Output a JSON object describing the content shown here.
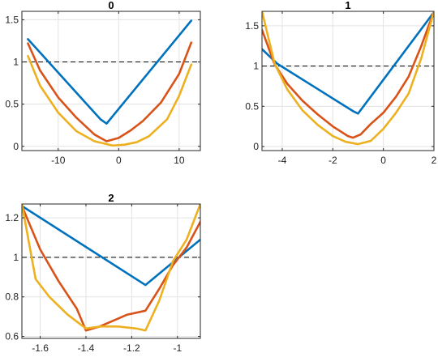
{
  "colors": {
    "s1": "#0072BD",
    "s2": "#D95319",
    "s3": "#EDB120",
    "grid": "#e3e3e3",
    "axis": "#262626"
  },
  "chart_data": [
    {
      "type": "line",
      "title": "0",
      "xlim": [
        -16,
        13.5
      ],
      "ylim": [
        -0.05,
        1.6
      ],
      "xticks": [
        -10,
        0,
        10
      ],
      "xtick_labels": [
        "-10",
        "0",
        "10"
      ],
      "yticks": [
        0,
        0.5,
        1,
        1.5
      ],
      "ytick_labels": [
        "0",
        "0.5",
        "1",
        "1.5"
      ],
      "grid": true,
      "reference_line": {
        "y": 1,
        "style": "dashed"
      },
      "series": [
        {
          "color": "#0072BD",
          "x": [
            -15,
            -3,
            -2,
            12
          ],
          "y": [
            1.27,
            0.32,
            0.27,
            1.49
          ]
        },
        {
          "color": "#D95319",
          "x": [
            -15,
            -13,
            -10,
            -7,
            -4,
            -2,
            0,
            2,
            4,
            7,
            10,
            12
          ],
          "y": [
            1.22,
            0.9,
            0.58,
            0.34,
            0.14,
            0.06,
            0.1,
            0.19,
            0.3,
            0.52,
            0.86,
            1.23
          ]
        },
        {
          "color": "#EDB120",
          "x": [
            -15,
            -13,
            -10,
            -7,
            -4,
            -1,
            1,
            3,
            5,
            8,
            10,
            12
          ],
          "y": [
            1.07,
            0.72,
            0.4,
            0.18,
            0.06,
            0.01,
            0.02,
            0.05,
            0.12,
            0.32,
            0.6,
            0.97
          ]
        }
      ]
    },
    {
      "type": "line",
      "title": "1",
      "xlim": [
        -4.8,
        2.0
      ],
      "ylim": [
        -0.05,
        1.68
      ],
      "xticks": [
        -4,
        -2,
        0,
        2
      ],
      "xtick_labels": [
        "-4",
        "-2",
        "0",
        "2"
      ],
      "yticks": [
        0,
        0.5,
        1,
        1.5
      ],
      "ytick_labels": [
        "0",
        "0.5",
        "1",
        "1.5"
      ],
      "grid": true,
      "reference_line": {
        "y": 1,
        "style": "dashed"
      },
      "series": [
        {
          "color": "#0072BD",
          "x": [
            -4.8,
            -4.2,
            -1.2,
            -1.0,
            2.0
          ],
          "y": [
            1.21,
            1.03,
            0.44,
            0.41,
            1.67
          ]
        },
        {
          "color": "#D95319",
          "x": [
            -4.8,
            -4.3,
            -3.8,
            -3.2,
            -2.6,
            -2.0,
            -1.4,
            -1.2,
            -0.9,
            -0.5,
            0,
            0.5,
            1.0,
            1.5,
            2.0
          ],
          "y": [
            1.45,
            1.02,
            0.78,
            0.57,
            0.4,
            0.25,
            0.13,
            0.11,
            0.15,
            0.28,
            0.42,
            0.62,
            0.87,
            1.25,
            1.68
          ]
        },
        {
          "color": "#EDB120",
          "x": [
            -4.8,
            -4.3,
            -3.8,
            -3.2,
            -2.6,
            -2.0,
            -1.5,
            -1.0,
            -0.5,
            0,
            0.5,
            1.0,
            1.5,
            2.0
          ],
          "y": [
            1.68,
            1.03,
            0.71,
            0.45,
            0.27,
            0.13,
            0.06,
            0.03,
            0.07,
            0.22,
            0.42,
            0.66,
            1.1,
            1.68
          ]
        }
      ]
    },
    {
      "type": "line",
      "title": "2",
      "xlim": [
        -1.68,
        -0.9
      ],
      "ylim": [
        0.59,
        1.27
      ],
      "xticks": [
        -1.6,
        -1.4,
        -1.2,
        -1
      ],
      "xtick_labels": [
        "-1.6",
        "-1.4",
        "-1.2",
        "-1"
      ],
      "yticks": [
        0.6,
        0.8,
        1,
        1.2
      ],
      "ytick_labels": [
        "0.6",
        "0.8",
        "1",
        "1.2"
      ],
      "grid": true,
      "reference_line": {
        "y": 1,
        "style": "dashed"
      },
      "series": [
        {
          "color": "#0072BD",
          "x": [
            -1.68,
            -1.14,
            -0.9
          ],
          "y": [
            1.26,
            0.86,
            1.09
          ]
        },
        {
          "color": "#D95319",
          "x": [
            -1.68,
            -1.6,
            -1.52,
            -1.44,
            -1.4,
            -1.34,
            -1.28,
            -1.22,
            -1.14,
            -1.08,
            -1.02,
            -0.96,
            -0.9
          ],
          "y": [
            1.26,
            1.04,
            0.88,
            0.74,
            0.63,
            0.65,
            0.68,
            0.71,
            0.73,
            0.84,
            0.96,
            1.05,
            1.18
          ]
        },
        {
          "color": "#EDB120",
          "x": [
            -1.68,
            -1.62,
            -1.56,
            -1.48,
            -1.4,
            -1.34,
            -1.26,
            -1.18,
            -1.14,
            -1.08,
            -1.02,
            -0.96,
            -0.9
          ],
          "y": [
            1.27,
            0.89,
            0.8,
            0.71,
            0.64,
            0.65,
            0.65,
            0.64,
            0.63,
            0.78,
            0.98,
            1.09,
            1.27
          ]
        }
      ]
    }
  ]
}
